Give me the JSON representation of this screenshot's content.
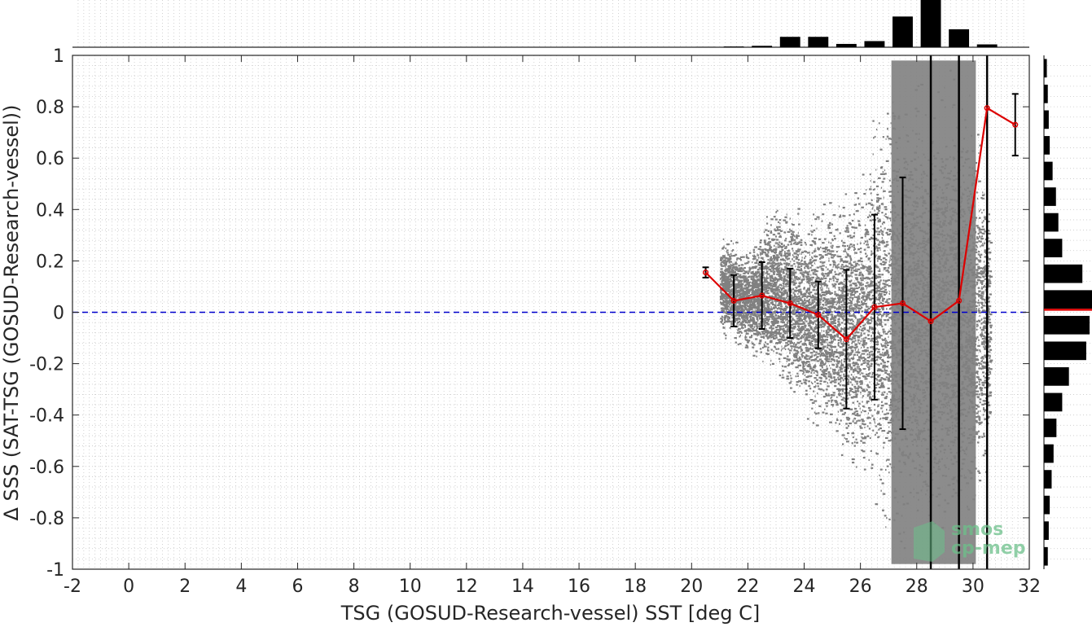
{
  "chart_data": {
    "type": "scatter",
    "xlabel": "TSG (GOSUD-Research-vessel) SST [deg C]",
    "ylabel": "Δ SSS (SAT-TSG (GOSUD-Research-vessel))",
    "xlim": [
      -2,
      32
    ],
    "ylim": [
      -1,
      1
    ],
    "xticks": [
      -2,
      0,
      2,
      4,
      6,
      8,
      10,
      12,
      14,
      16,
      18,
      20,
      22,
      24,
      26,
      28,
      30,
      32
    ],
    "yticks": [
      -1,
      -0.8,
      -0.6,
      -0.4,
      -0.2,
      0,
      0.2,
      0.4,
      0.6,
      0.8,
      1
    ],
    "grid": "minor dotted",
    "zero_line": {
      "y": 0,
      "style": "dashed",
      "color": "#0000cc"
    },
    "binned_mean": {
      "x": [
        20.5,
        21.5,
        22.5,
        23.5,
        24.5,
        25.5,
        26.5,
        27.5,
        28.5,
        29.5,
        30.5,
        31.5
      ],
      "mean": [
        0.155,
        0.045,
        0.065,
        0.035,
        -0.01,
        -0.105,
        0.02,
        0.035,
        -0.035,
        0.045,
        0.795,
        0.73
      ],
      "std": [
        0.02,
        0.1,
        0.13,
        0.135,
        0.13,
        0.27,
        0.36,
        0.49,
        1.7,
        1.7,
        1.7,
        0.12
      ],
      "color": "#dd0000"
    },
    "scatter_cloud": {
      "color": "#808080",
      "x_range": [
        21,
        31
      ],
      "envelope": [
        {
          "x": 21.0,
          "lo": -0.1,
          "hi": 0.32
        },
        {
          "x": 22.0,
          "lo": -0.2,
          "hi": 0.28
        },
        {
          "x": 23.0,
          "lo": -0.32,
          "hi": 0.5
        },
        {
          "x": 24.0,
          "lo": -0.42,
          "hi": 0.42
        },
        {
          "x": 25.0,
          "lo": -0.55,
          "hi": 0.5
        },
        {
          "x": 26.0,
          "lo": -0.75,
          "hi": 0.6
        },
        {
          "x": 26.5,
          "lo": -0.8,
          "hi": 0.85
        },
        {
          "x": 27.0,
          "lo": -1.0,
          "hi": 1.0
        },
        {
          "x": 30.0,
          "lo": -1.0,
          "hi": 1.0
        },
        {
          "x": 30.6,
          "lo": -0.6,
          "hi": 0.5
        }
      ]
    },
    "top_histogram": {
      "bins": [
        18.5,
        19.5,
        20.5,
        21.5,
        22.5,
        23.5,
        24.5,
        25.5,
        26.5,
        27.5,
        28.5,
        29.5,
        30.5,
        31.5
      ],
      "relative_counts": [
        0,
        0,
        0.005,
        0.015,
        0.03,
        0.22,
        0.22,
        0.07,
        0.13,
        0.65,
        1.0,
        0.38,
        0.06,
        0
      ]
    },
    "right_histogram": {
      "bins": [
        -0.95,
        -0.85,
        -0.75,
        -0.65,
        -0.55,
        -0.45,
        -0.35,
        -0.25,
        -0.15,
        -0.05,
        0.05,
        0.15,
        0.25,
        0.35,
        0.45,
        0.55,
        0.65,
        0.75,
        0.85,
        0.95
      ],
      "relative_counts": [
        0.08,
        0.1,
        0.12,
        0.16,
        0.2,
        0.26,
        0.38,
        0.52,
        0.88,
        0.95,
        1.0,
        0.8,
        0.38,
        0.3,
        0.25,
        0.18,
        0.12,
        0.1,
        0.08,
        0.06
      ],
      "mean_marker": 0.01
    }
  },
  "watermark": {
    "line1": "smos",
    "line2": "cp-mep"
  }
}
